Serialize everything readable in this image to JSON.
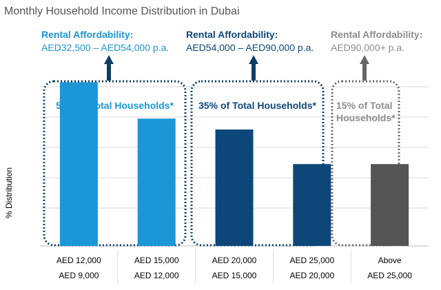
{
  "chart_data": {
    "type": "bar",
    "title": "Monthly Household Income Distribution in Dubai",
    "ylabel": "% Distribution",
    "xlabel": "",
    "grid": true,
    "ylim": [
      0,
      100
    ],
    "categories": [
      [
        "AED 9,000",
        "AED 12,000"
      ],
      [
        "AED 12,000",
        "AED 15,000"
      ],
      [
        "AED 15,000",
        "AED 20,000"
      ],
      [
        "AED 20,000",
        "AED 25,000"
      ],
      [
        "AED 25,000",
        "Above"
      ]
    ],
    "values": [
      90,
      70,
      64,
      45,
      45
    ],
    "bar_colors": [
      "#1b96d6",
      "#1b96d6",
      "#0d477a",
      "#0d477a",
      "#545454"
    ],
    "groups": [
      {
        "share": [
          "50% of Total Households*"
        ],
        "rental_heading": "Rental Affordability:",
        "rental_range": "AED32,500 – AED54,000 p.a.",
        "color": "#1b96d6",
        "frame_color": "#0d3c66",
        "bars": [
          0,
          1
        ]
      },
      {
        "share": [
          "35% of Total Households*"
        ],
        "rental_heading": "Rental Affordability:",
        "rental_range": "AED54,000 – AED90,000 p.a.",
        "color": "#0d477a",
        "frame_color": "#0d3c66",
        "bars": [
          2,
          3
        ]
      },
      {
        "share": [
          "15% of Total",
          "Households*"
        ],
        "rental_heading": "Rental Affordability:",
        "rental_range": "AED90,000+ p.a.",
        "color": "#8c8c8c",
        "frame_color": "#666666",
        "bars": [
          4
        ]
      }
    ]
  }
}
